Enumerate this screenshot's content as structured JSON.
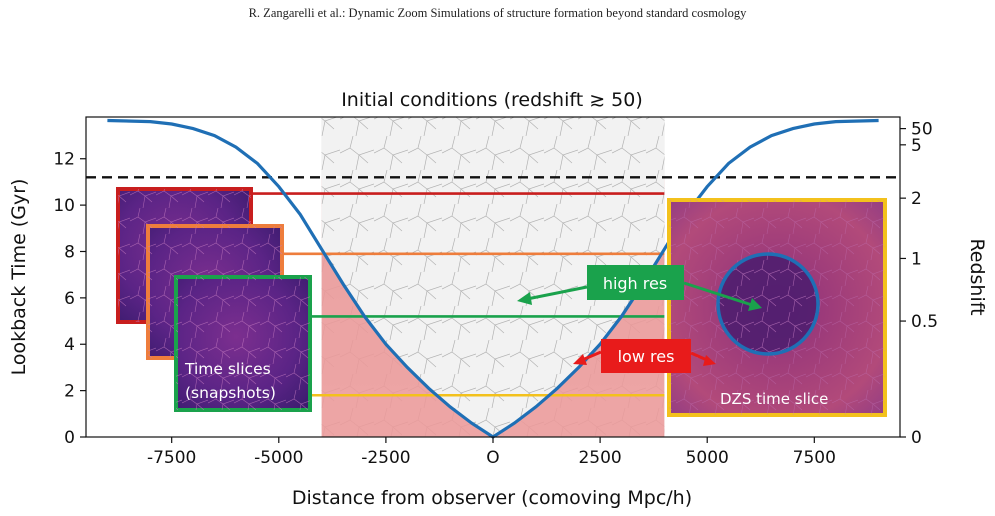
{
  "running_head": "R. Zangarelli et al.: Dynamic Zoom Simulations of structure formation beyond standard cosmology",
  "colors": {
    "lightcone": "#1f6fb5",
    "red_slice": "#c81e1e",
    "orange_slice": "#ee7d3c",
    "green_slice": "#1aa24c",
    "yellow_slice": "#f3c11c",
    "low_res_band": "#ee9a9a",
    "high_res_label_bg": "#1aa24c",
    "low_res_label_bg": "#e81b1b"
  },
  "labels": {
    "top_title": "Initial conditions (redshift ≳ 50)",
    "time_slices_line1": "Time slices",
    "time_slices_line2": "(snapshots)",
    "dzs_time_slice": "DZS time slice",
    "high_res": "high res",
    "low_res": "low res"
  },
  "chart_data": {
    "type": "diagram",
    "title": "Initial conditions (redshift ≳ 50)",
    "xlabel": "Distance from observer (comoving Mpc/h)",
    "ylabel_left": "Lookback Time (Gyr)",
    "ylabel_right": "Redshift",
    "xlim": [
      -9500,
      9500
    ],
    "ylim": [
      0,
      13.8
    ],
    "x_ticks": [
      {
        "value": -7500,
        "label": "-7500"
      },
      {
        "value": -5000,
        "label": "-5000"
      },
      {
        "value": -2500,
        "label": "-2500"
      },
      {
        "value": 0,
        "label": "O"
      },
      {
        "value": 2500,
        "label": "2500"
      },
      {
        "value": 5000,
        "label": "5000"
      },
      {
        "value": 7500,
        "label": "7500"
      }
    ],
    "y_ticks_left": [
      0,
      2,
      4,
      6,
      8,
      10,
      12
    ],
    "y_ticks_right": [
      {
        "t": 0,
        "label": "0"
      },
      {
        "t": 5.0,
        "label": "0.5"
      },
      {
        "t": 7.7,
        "label": "1"
      },
      {
        "t": 10.3,
        "label": "2"
      },
      {
        "t": 12.6,
        "label": "5"
      },
      {
        "t": 13.3,
        "label": "50"
      }
    ],
    "initial_conditions_line_t": 11.2,
    "lightcone": [
      [
        0,
        0
      ],
      [
        500,
        0.6
      ],
      [
        1000,
        1.3
      ],
      [
        1500,
        2.1
      ],
      [
        2000,
        3.0
      ],
      [
        2500,
        4.0
      ],
      [
        3000,
        5.2
      ],
      [
        3500,
        6.6
      ],
      [
        4000,
        8.1
      ],
      [
        4500,
        9.6
      ],
      [
        5000,
        10.8
      ],
      [
        5500,
        11.8
      ],
      [
        6000,
        12.5
      ],
      [
        6500,
        13.0
      ],
      [
        7000,
        13.3
      ],
      [
        7500,
        13.5
      ],
      [
        8000,
        13.6
      ],
      [
        9000,
        13.65
      ]
    ],
    "low_res_band_x": [
      -4000,
      4000
    ],
    "time_slices": [
      {
        "name": "red",
        "t": 10.5,
        "x_end": 4000
      },
      {
        "name": "orange",
        "t": 7.9,
        "x_end": 4000
      },
      {
        "name": "green",
        "t": 5.2,
        "x_end": 4000
      },
      {
        "name": "yellow",
        "t": 1.8,
        "x_start": -5000,
        "x_end": 4000
      }
    ]
  }
}
